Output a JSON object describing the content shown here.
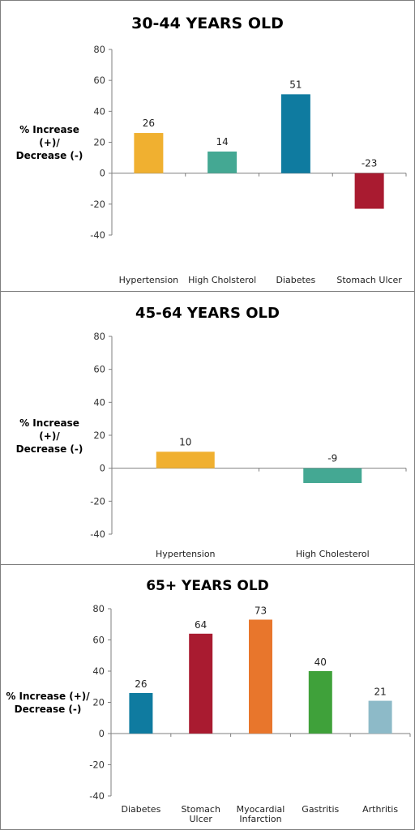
{
  "chart_data": [
    {
      "type": "bar",
      "title": "30-44 YEARS OLD",
      "ylabel": [
        "% Increase",
        "(+)/",
        "Decrease (-)"
      ],
      "ylim": [
        -40,
        80
      ],
      "yticks": [
        80,
        60,
        40,
        20,
        0,
        -20,
        -40
      ],
      "categories": [
        [
          "Hypertension"
        ],
        [
          "High Cholsterol"
        ],
        [
          "Diabetes"
        ],
        [
          "Stomach Ulcer"
        ]
      ],
      "values": [
        26,
        14,
        51,
        -23
      ],
      "colors": [
        "#F0B030",
        "#44A893",
        "#0F7BA0",
        "#A91B30"
      ]
    },
    {
      "type": "bar",
      "title": "45-64 YEARS OLD",
      "ylabel": [
        "% Increase",
        "(+)/",
        "Decrease (-)"
      ],
      "ylim": [
        -40,
        80
      ],
      "yticks": [
        80,
        60,
        40,
        20,
        0,
        -20,
        -40
      ],
      "categories": [
        [
          "Hypertension"
        ],
        [
          "High Cholesterol"
        ]
      ],
      "values": [
        10,
        -9
      ],
      "colors": [
        "#F0B030",
        "#44A893"
      ]
    },
    {
      "type": "bar",
      "title": "65+ YEARS OLD",
      "ylabel": [
        "% Increase (+)/",
        "Decrease (-)"
      ],
      "ylim": [
        -40,
        80
      ],
      "yticks": [
        80,
        60,
        40,
        20,
        0,
        -20,
        -40
      ],
      "categories": [
        [
          "Diabetes"
        ],
        [
          "Stomach",
          "Ulcer"
        ],
        [
          "Myocardial",
          "Infarction"
        ],
        [
          "Gastritis"
        ],
        [
          "Arthritis"
        ]
      ],
      "values": [
        26,
        64,
        73,
        40,
        21
      ],
      "colors": [
        "#0F7BA0",
        "#A91B30",
        "#E8762C",
        "#3FA13A",
        "#8DBAC8"
      ]
    }
  ]
}
